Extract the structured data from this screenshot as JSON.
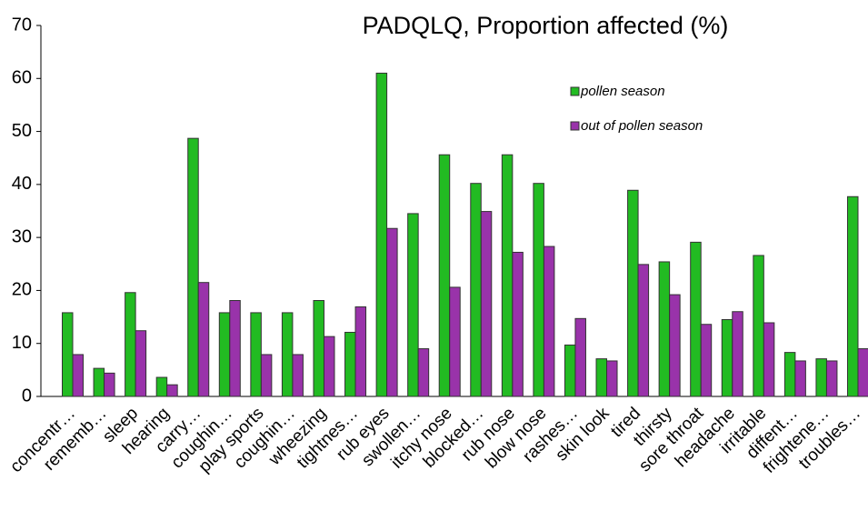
{
  "chart_data": {
    "type": "bar",
    "title": "PADQLQ, Proportion affected (%)",
    "categories": [
      "concentr…",
      "rememb…",
      "sleep",
      "hearing",
      "carry…",
      "coughin…",
      "play sports",
      "coughin…",
      "wheezing",
      "tightnes…",
      "rub eyes",
      "swollen…",
      "itchy nose",
      "blocked…",
      "rub nose",
      "blow nose",
      "rashes…",
      "skin look",
      "tired",
      "thirsty",
      "sore throat",
      "headache",
      "irritable",
      "diffent…",
      "frightene…",
      "troubles…"
    ],
    "series": [
      {
        "name": "pollen season",
        "color": "#22bb22",
        "values": [
          15.8,
          5.3,
          19.6,
          3.6,
          48.7,
          15.8,
          15.8,
          15.8,
          18.1,
          12.1,
          61,
          34.5,
          45.6,
          40.2,
          45.6,
          40.2,
          9.7,
          7.1,
          38.9,
          25.4,
          29.1,
          14.5,
          26.6,
          8.3,
          7.1,
          37.7
        ]
      },
      {
        "name": "out of pollen season",
        "color": "#9933aa",
        "values": [
          7.9,
          4.4,
          12.4,
          2.2,
          21.5,
          18.1,
          7.9,
          7.9,
          11.3,
          16.9,
          31.7,
          9.0,
          20.6,
          34.9,
          27.2,
          28.3,
          14.7,
          6.7,
          24.9,
          19.2,
          13.6,
          16.0,
          13.9,
          6.7,
          6.7,
          9.0
        ]
      }
    ],
    "ylim": [
      0,
      70
    ],
    "yticks": [
      0,
      10,
      20,
      30,
      40,
      50,
      60,
      70
    ],
    "grid": false
  }
}
